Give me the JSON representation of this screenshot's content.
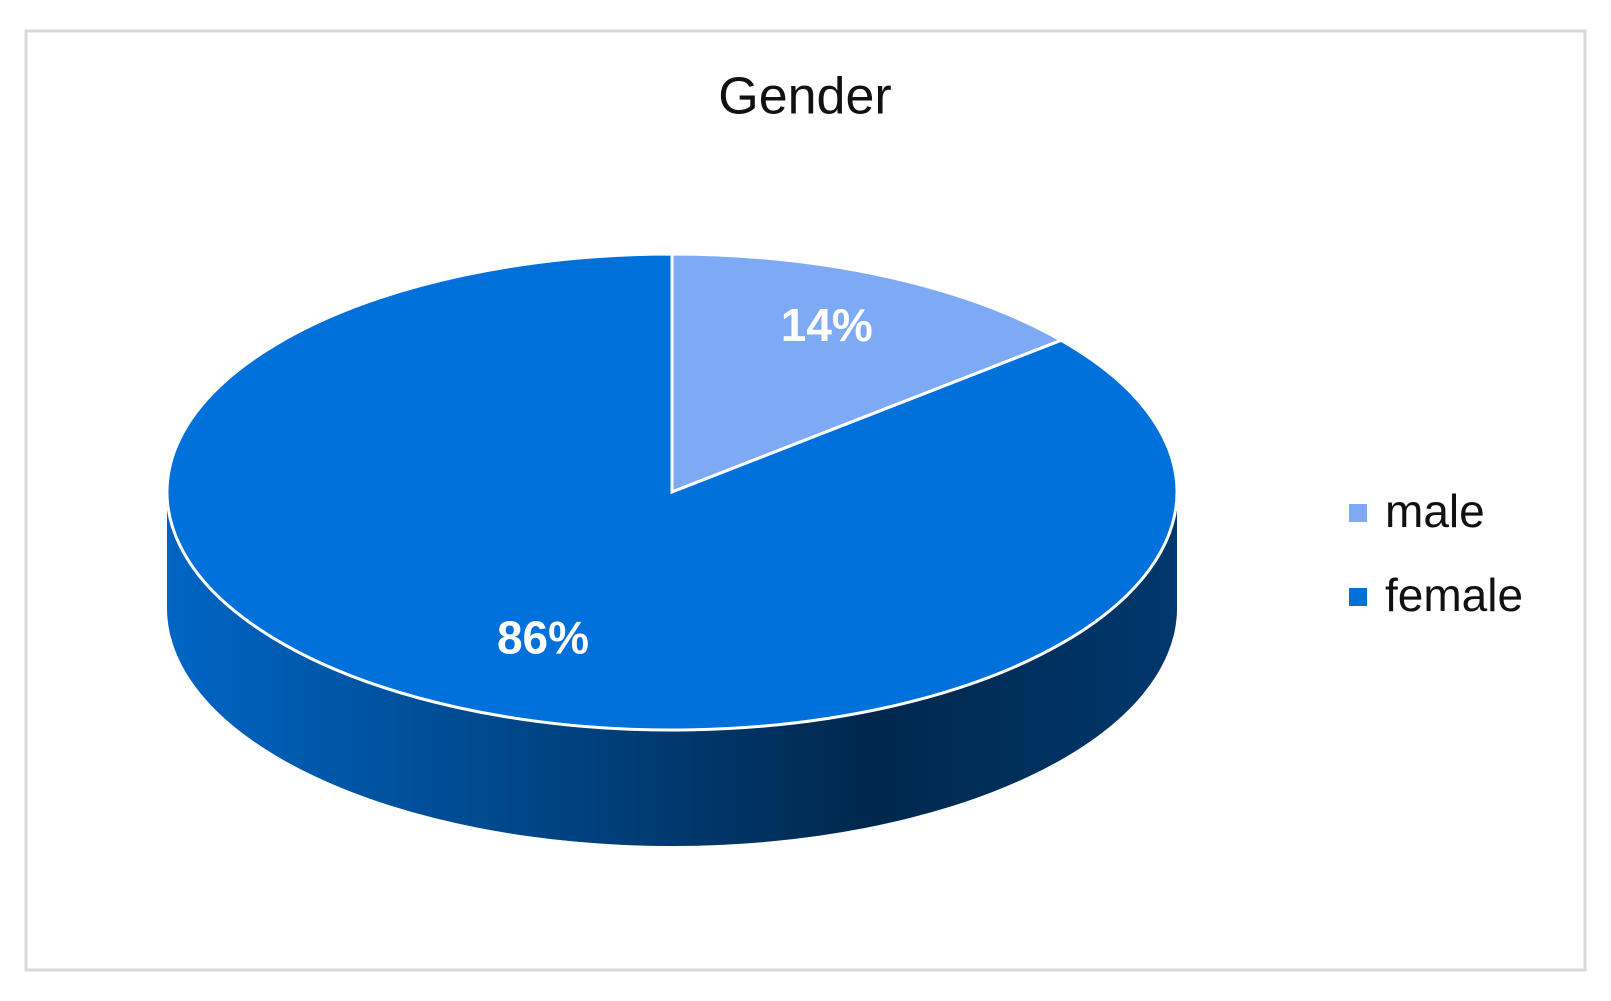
{
  "chart_data": {
    "type": "pie",
    "title": "Gender",
    "categories": [
      "male",
      "female"
    ],
    "values": [
      14,
      86
    ],
    "value_labels": [
      "14%",
      "86%"
    ],
    "colors": [
      "#7ea9f5",
      "#0070da"
    ],
    "legend": "right"
  }
}
